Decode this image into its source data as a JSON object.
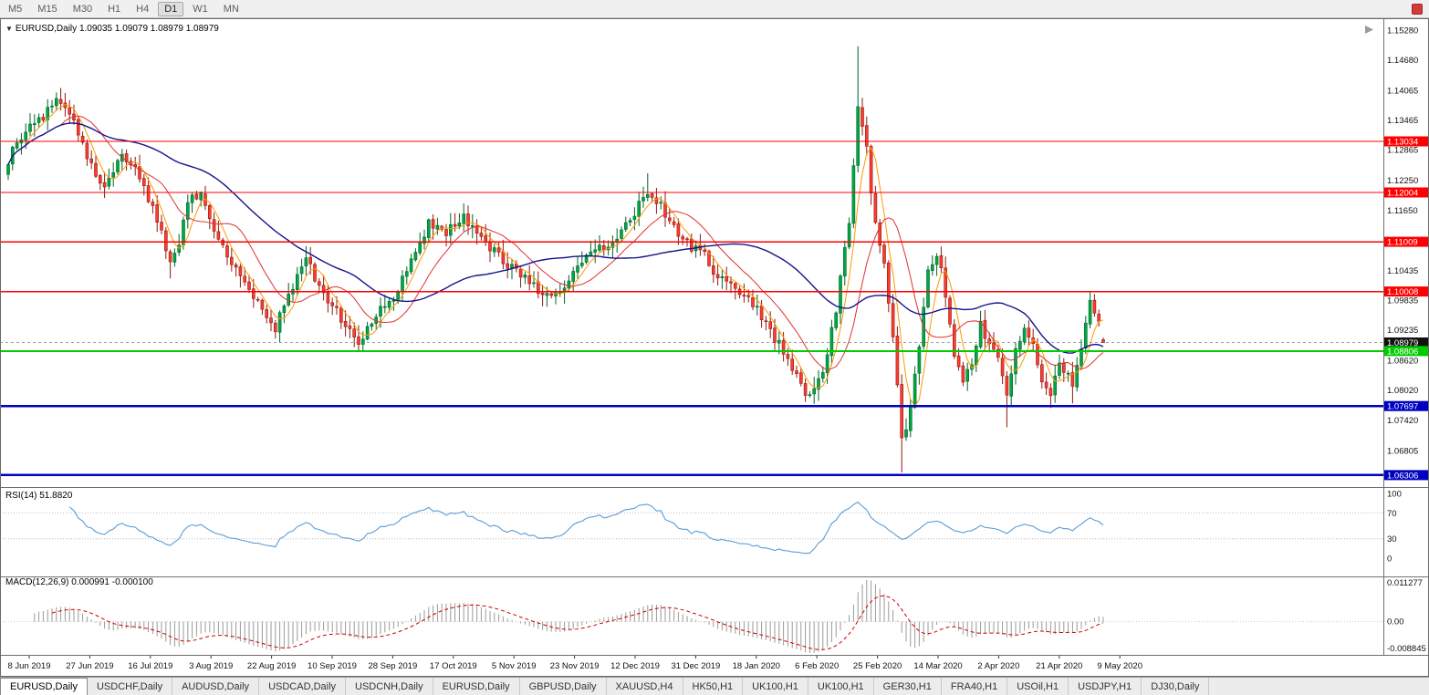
{
  "toolbar": {
    "timeframes": [
      "M5",
      "M15",
      "M30",
      "H1",
      "H4",
      "D1",
      "W1",
      "MN"
    ],
    "active": "D1"
  },
  "chart_header": {
    "symbol": "EURUSD,Daily",
    "ohlc_text": "1.09035 1.09079 1.08979 1.08979"
  },
  "price_axis": {
    "ticks": [
      "1.15280",
      "1.14680",
      "1.14065",
      "1.13465",
      "1.12865",
      "1.12250",
      "1.11650",
      "1.10435",
      "1.09835",
      "1.09235",
      "1.08620",
      "1.08020",
      "1.07420",
      "1.06805"
    ]
  },
  "levels": {
    "red": [
      1.13034,
      1.12004,
      1.11009,
      1.10008
    ],
    "green": [
      1.08806
    ],
    "blue": [
      1.07697,
      1.06306
    ],
    "current": 1.08979
  },
  "time_axis": {
    "labels": [
      "8 Jun 2019",
      "27 Jun 2019",
      "16 Jul 2019",
      "3 Aug 2019",
      "22 Aug 2019",
      "10 Sep 2019",
      "28 Sep 2019",
      "17 Oct 2019",
      "5 Nov 2019",
      "23 Nov 2019",
      "12 Dec 2019",
      "31 Dec 2019",
      "18 Jan 2020",
      "6 Feb 2020",
      "25 Feb 2020",
      "14 Mar 2020",
      "2 Apr 2020",
      "21 Apr 2020",
      "9 May 2020"
    ]
  },
  "rsi_panel": {
    "label": "RSI(14)",
    "value": "51.8820",
    "axis": [
      100,
      70,
      30,
      0
    ],
    "upper_level": 70,
    "lower_level": 30
  },
  "macd_panel": {
    "label": "MACD(12,26,9)",
    "values": "0.000991 -0.000100",
    "axis_max": "0.011277",
    "axis_zero": "0.00",
    "axis_min": "-0.008845"
  },
  "tabs": {
    "items": [
      "EURUSD,Daily",
      "USDCHF,Daily",
      "AUDUSD,Daily",
      "USDCAD,Daily",
      "USDCNH,Daily",
      "EURUSD,Daily",
      "GBPUSD,Daily",
      "XAUUSD,H4",
      "HK50,H1",
      "UK100,H1",
      "UK100,H1",
      "GER30,H1",
      "FRA40,H1",
      "USOil,H1",
      "USDJPY,H1",
      "DJ30,Daily"
    ],
    "active_index": 0
  },
  "colors": {
    "bull": "#00a843",
    "bull_border": "#006428",
    "bear": "#ff3b30",
    "bear_border": "#8e1a10",
    "red_line": "#ff0000",
    "green_line": "#00cc00",
    "blue_line": "#0000c2",
    "current_line": "#a0a0a0",
    "rsi_line": "#5b9bd5",
    "macd_hist": "#9a9a9a",
    "macd_signal": "#cc0000",
    "background": "#ffffff"
  },
  "chart_data": {
    "type": "candlestick",
    "symbol": "EURUSD",
    "timeframe": "Daily",
    "bars": 251,
    "price_range_visible": [
      1.0612,
      1.1537
    ],
    "last_ohlc": {
      "open": 1.09035,
      "high": 1.09079,
      "low": 1.08979,
      "close": 1.08979
    },
    "close_keypoints": [
      [
        0,
        1.1265
      ],
      [
        4,
        1.133
      ],
      [
        8,
        1.1355
      ],
      [
        11,
        1.139
      ],
      [
        14,
        1.1365
      ],
      [
        18,
        1.127
      ],
      [
        22,
        1.1215
      ],
      [
        26,
        1.128
      ],
      [
        30,
        1.123
      ],
      [
        34,
        1.115
      ],
      [
        37,
        1.106
      ],
      [
        39,
        1.109
      ],
      [
        41,
        1.119
      ],
      [
        44,
        1.12
      ],
      [
        48,
        1.111
      ],
      [
        52,
        1.104
      ],
      [
        56,
        1.099
      ],
      [
        61,
        1.093
      ],
      [
        64,
        1.1
      ],
      [
        68,
        1.1065
      ],
      [
        72,
        1.1
      ],
      [
        76,
        1.0945
      ],
      [
        80,
        1.0895
      ],
      [
        84,
        1.096
      ],
      [
        88,
        1.099
      ],
      [
        92,
        1.106
      ],
      [
        96,
        1.114
      ],
      [
        100,
        1.112
      ],
      [
        104,
        1.1155
      ],
      [
        108,
        1.111
      ],
      [
        112,
        1.107
      ],
      [
        116,
        1.1045
      ],
      [
        120,
        1.101
      ],
      [
        124,
        1.0985
      ],
      [
        128,
        1.102
      ],
      [
        132,
        1.107
      ],
      [
        136,
        1.109
      ],
      [
        140,
        1.112
      ],
      [
        146,
        1.1205
      ],
      [
        150,
        1.116
      ],
      [
        154,
        1.11
      ],
      [
        158,
        1.1085
      ],
      [
        162,
        1.103
      ],
      [
        166,
        1.101
      ],
      [
        170,
        1.0975
      ],
      [
        174,
        1.092
      ],
      [
        178,
        1.0865
      ],
      [
        182,
        1.079
      ],
      [
        186,
        1.0835
      ],
      [
        189,
        1.0965
      ],
      [
        192,
        1.114
      ],
      [
        194,
        1.1375
      ],
      [
        196,
        1.129
      ],
      [
        198,
        1.113
      ],
      [
        200,
        1.106
      ],
      [
        202,
        1.0905
      ],
      [
        204,
        1.07
      ],
      [
        206,
        1.076
      ],
      [
        208,
        1.09
      ],
      [
        210,
        1.105
      ],
      [
        212,
        1.1075
      ],
      [
        214,
        1.1
      ],
      [
        216,
        1.088
      ],
      [
        218,
        1.0815
      ],
      [
        220,
        1.086
      ],
      [
        222,
        1.0935
      ],
      [
        224,
        1.0895
      ],
      [
        226,
        1.0865
      ],
      [
        228,
        1.0795
      ],
      [
        230,
        1.0885
      ],
      [
        232,
        1.0935
      ],
      [
        234,
        1.0895
      ],
      [
        236,
        1.0825
      ],
      [
        238,
        1.08
      ],
      [
        240,
        1.0855
      ],
      [
        242,
        1.084
      ],
      [
        243,
        1.0805
      ],
      [
        245,
        1.0895
      ],
      [
        247,
        1.0985
      ],
      [
        249,
        1.093
      ],
      [
        250,
        1.0898
      ]
    ],
    "spikes": [
      {
        "bar": 11,
        "high": 1.14
      },
      {
        "bar": 37,
        "low": 1.1027
      },
      {
        "bar": 61,
        "low": 1.0926
      },
      {
        "bar": 80,
        "low": 1.0879
      },
      {
        "bar": 146,
        "high": 1.1239
      },
      {
        "bar": 182,
        "low": 1.0778
      },
      {
        "bar": 194,
        "high": 1.1495
      },
      {
        "bar": 204,
        "low": 1.0636
      },
      {
        "bar": 228,
        "low": 1.0727
      },
      {
        "bar": 238,
        "low": 1.0766
      },
      {
        "bar": 243,
        "low": 1.0775
      },
      {
        "bar": 247,
        "high": 1.0998
      }
    ],
    "moving_averages": [
      {
        "period": 5,
        "color": "#ff9800",
        "width": 1
      },
      {
        "period": 13,
        "color": "#e03131",
        "width": 1
      },
      {
        "period": 40,
        "color": "#14148c",
        "width": 1.4
      }
    ],
    "horizontal_lines": [
      {
        "price": 1.13034,
        "color": "#ff0000"
      },
      {
        "price": 1.12004,
        "color": "#ff0000"
      },
      {
        "price": 1.11009,
        "color": "#ff0000"
      },
      {
        "price": 1.10008,
        "color": "#ff0000"
      },
      {
        "price": 1.08806,
        "color": "#00cc00"
      },
      {
        "price": 1.07697,
        "color": "#0000c2"
      },
      {
        "price": 1.06306,
        "color": "#0000c2"
      }
    ],
    "indicators": [
      {
        "name": "RSI",
        "period": 14,
        "current": 51.882
      },
      {
        "name": "MACD",
        "fast": 12,
        "slow": 26,
        "signal": 9,
        "current_values": [
          0.000991,
          -0.0001
        ]
      }
    ]
  }
}
